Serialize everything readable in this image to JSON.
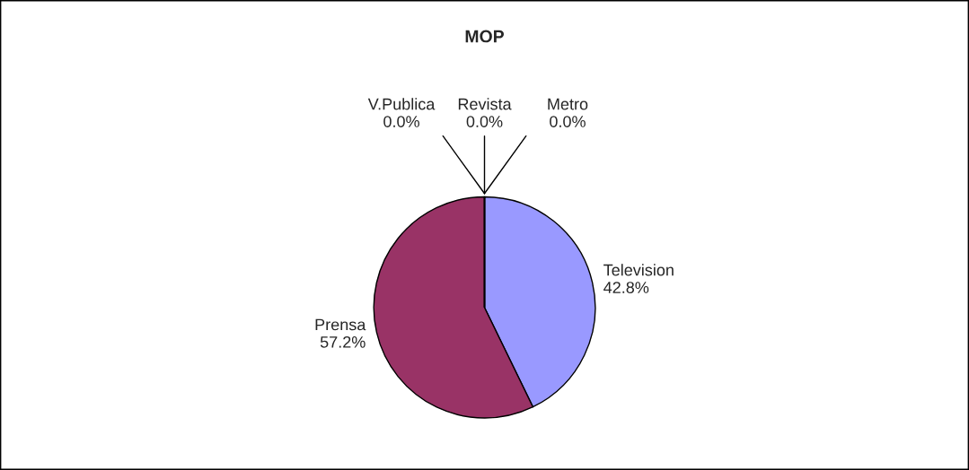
{
  "chart_data": {
    "type": "pie",
    "title": "MOP",
    "categories": [
      "Television",
      "Prensa",
      "V.Publica",
      "Revista",
      "Metro"
    ],
    "values": [
      42.8,
      57.2,
      0.0,
      0.0,
      0.0
    ],
    "value_labels": [
      "42.8%",
      "57.2%",
      "0.0%",
      "0.0%",
      "0.0%"
    ],
    "colors": [
      "#9999ff",
      "#993366",
      "#ffffcc",
      "#ccffff",
      "#660066"
    ],
    "legend": false
  }
}
